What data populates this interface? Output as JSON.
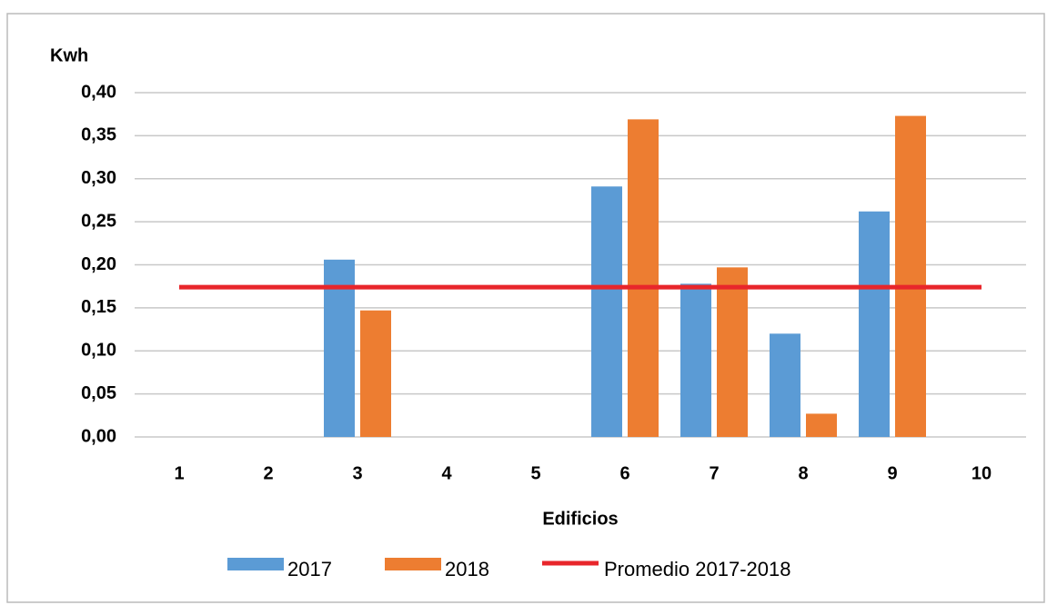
{
  "chart_data": {
    "type": "bar",
    "y_label": "Kwh",
    "x_label": "Edificios",
    "categories": [
      "1",
      "2",
      "3",
      "4",
      "5",
      "6",
      "7",
      "8",
      "9",
      "10"
    ],
    "series": [
      {
        "name": "2017",
        "color": "#5b9bd5",
        "values": [
          null,
          null,
          0.206,
          null,
          null,
          0.291,
          0.178,
          0.12,
          0.262,
          null
        ]
      },
      {
        "name": "2018",
        "color": "#ed7d31",
        "values": [
          null,
          null,
          0.147,
          null,
          null,
          0.369,
          0.197,
          0.027,
          0.373,
          null
        ]
      },
      {
        "name": "Promedio 2017-2018",
        "color": "#e8262b",
        "type": "line",
        "values": [
          0.174,
          0.174,
          0.174,
          0.174,
          0.174,
          0.174,
          0.174,
          0.174,
          0.174,
          0.174
        ]
      }
    ],
    "ylim": [
      0,
      0.4
    ],
    "yticks": [
      {
        "value": 0,
        "label": "0,00"
      },
      {
        "value": 0.05,
        "label": "0,05"
      },
      {
        "value": 0.1,
        "label": "0,10"
      },
      {
        "value": 0.15,
        "label": "0,15"
      },
      {
        "value": 0.2,
        "label": "0,20"
      },
      {
        "value": 0.25,
        "label": "0,25"
      },
      {
        "value": 0.3,
        "label": "0,30"
      },
      {
        "value": 0.35,
        "label": "0,35"
      },
      {
        "value": 0.4,
        "label": "0,40"
      }
    ],
    "grid": true,
    "legend": "bottom"
  }
}
